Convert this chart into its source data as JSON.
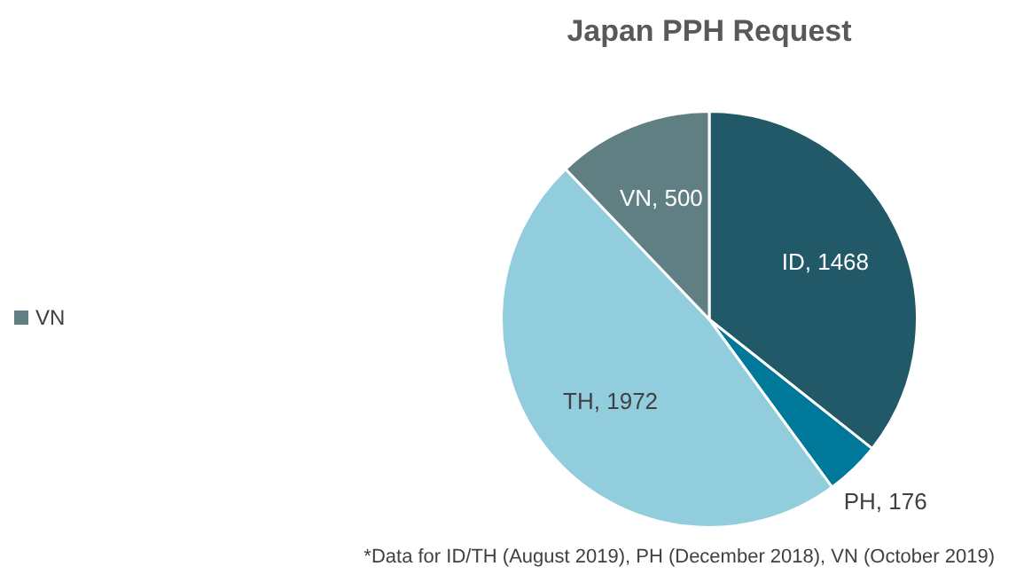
{
  "chart_data": {
    "type": "pie",
    "title": "Japan PPH Request",
    "categories": [
      "ID",
      "PH",
      "TH",
      "VN"
    ],
    "values": [
      1468,
      176,
      1972,
      500
    ],
    "value_labels": [
      ", 1468",
      ", 176",
      ", 1972",
      ", 500"
    ],
    "colors": [
      "#215968",
      "#00789a",
      "#92cddd",
      "#607f82"
    ],
    "legend": "left",
    "annotations": [
      "*Data for ID/TH (August 2019), PH (December 2018), VN (October 2019)"
    ]
  }
}
